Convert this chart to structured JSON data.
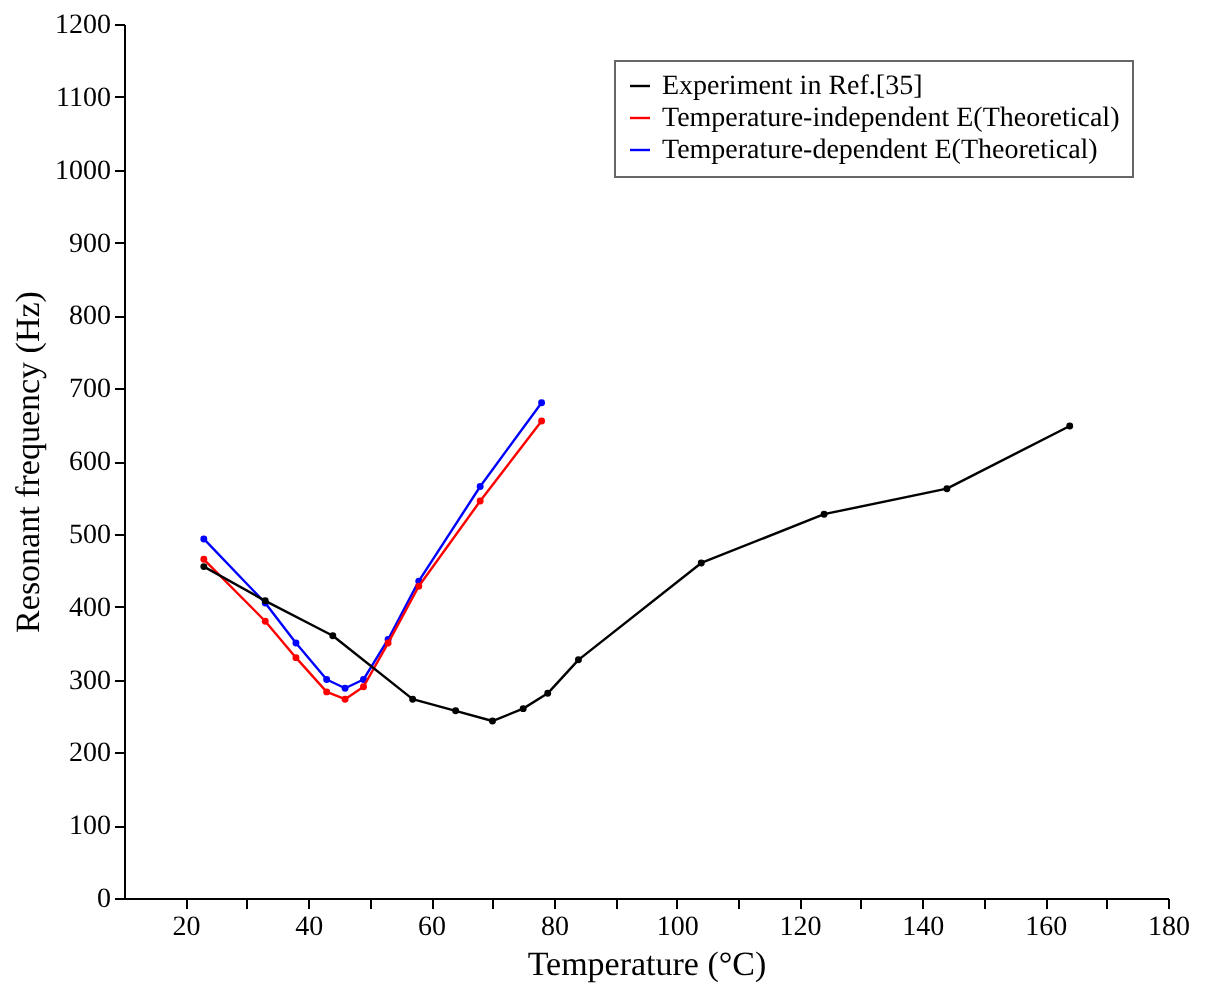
{
  "chart_data": {
    "type": "line",
    "xlabel": "Temperature (°C)",
    "ylabel": "Resonant frequency (Hz)",
    "xlim": [
      10,
      180
    ],
    "xticks": [
      20,
      {
        "value": 30,
        "label": null
      },
      40,
      {
        "value": 50,
        "label": null
      },
      60,
      {
        "value": 70,
        "label": null
      },
      80,
      {
        "value": 90,
        "label": null
      },
      100,
      {
        "value": 110,
        "label": null
      },
      120,
      {
        "value": 130,
        "label": null
      },
      140,
      {
        "value": 150,
        "label": null
      },
      160,
      {
        "value": 170,
        "label": null
      },
      180
    ],
    "ylim": [
      0,
      1200
    ],
    "yticks": [
      0,
      100,
      200,
      300,
      400,
      500,
      600,
      700,
      800,
      900,
      1000,
      1100,
      1200
    ],
    "grid": false,
    "legend": "top right",
    "marker": "circle",
    "line_style": "solid",
    "series": [
      {
        "name": "Experiment in Ref.[35]",
        "color": "#000000",
        "x": [
          23,
          33,
          44,
          57,
          64,
          70,
          75,
          79,
          84,
          104,
          124,
          144,
          164
        ],
        "values": [
          455,
          408,
          360,
          273,
          257,
          243,
          260,
          281,
          327,
          460,
          527,
          562,
          648
        ]
      },
      {
        "name": "Temperature-independent E(Theoretical)",
        "color": "#ff0000",
        "x": [
          23,
          33,
          38,
          43,
          46,
          49,
          53,
          58,
          68,
          78
        ],
        "values": [
          465,
          380,
          330,
          283,
          273,
          290,
          350,
          428,
          545,
          655
        ]
      },
      {
        "name": "Temperature-dependent E(Theoretical)",
        "color": "#0000ff",
        "x": [
          23,
          33,
          38,
          43,
          46,
          49,
          53,
          58,
          68,
          78
        ],
        "values": [
          493,
          405,
          350,
          300,
          288,
          300,
          355,
          435,
          565,
          680
        ]
      }
    ]
  }
}
